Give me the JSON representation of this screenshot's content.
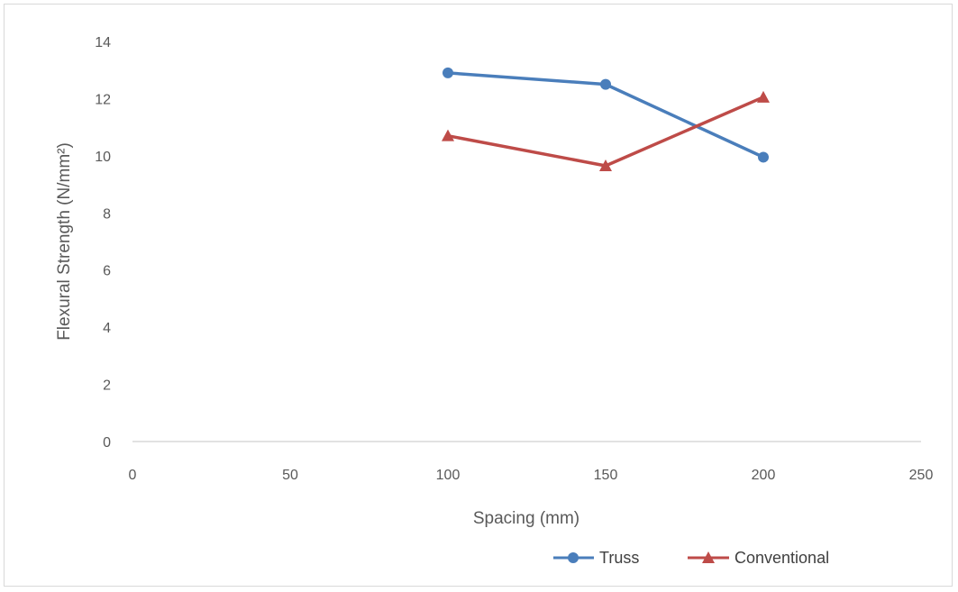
{
  "chart_data": {
    "type": "line",
    "title": "",
    "xlabel": "Spacing (mm)",
    "ylabel": "Flexural Strength (N/mm²)",
    "xlim": [
      0,
      250
    ],
    "ylim": [
      0,
      14
    ],
    "x_ticks": [
      "0",
      "50",
      "100",
      "150",
      "200",
      "250"
    ],
    "y_ticks": [
      "0",
      "2",
      "4",
      "6",
      "8",
      "10",
      "12",
      "14"
    ],
    "grid": false,
    "legend_position": "bottom-right",
    "series": [
      {
        "name": "Truss",
        "color": "#4a7ebb",
        "marker": "circle",
        "x": [
          100,
          150,
          200
        ],
        "y": [
          12.9,
          12.5,
          9.95
        ]
      },
      {
        "name": "Conventional",
        "color": "#be4b48",
        "marker": "triangle",
        "x": [
          100,
          150,
          200
        ],
        "y": [
          10.7,
          9.65,
          12.05
        ]
      }
    ]
  }
}
